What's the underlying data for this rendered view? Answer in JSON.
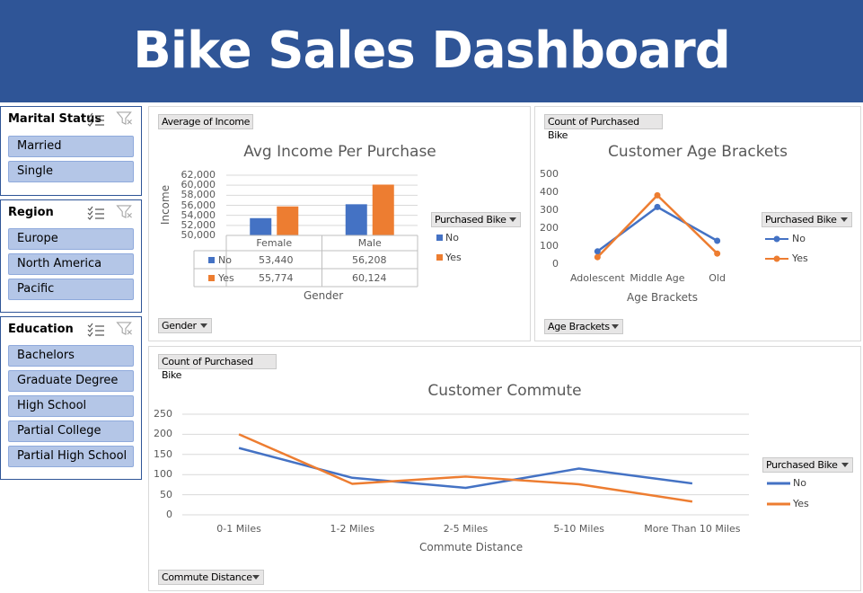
{
  "header": {
    "title": "Bike Sales Dashboard"
  },
  "colors": {
    "header_bg": "#2f5597",
    "series_no": "#4472c4",
    "series_yes": "#ed7d31",
    "slicer_item": "#b4c6e7"
  },
  "slicers": [
    {
      "title": "Marital Status",
      "items": [
        "Married",
        "Single"
      ],
      "icons": [
        "multi-select-icon",
        "clear-filter-icon"
      ]
    },
    {
      "title": "Region",
      "items": [
        "Europe",
        "North America",
        "Pacific"
      ],
      "icons": [
        "multi-select-icon",
        "clear-filter-icon"
      ]
    },
    {
      "title": "Education",
      "items": [
        "Bachelors",
        "Graduate Degree",
        "High School",
        "Partial College",
        "Partial High School"
      ],
      "icons": [
        "multi-select-icon",
        "clear-filter-icon"
      ]
    }
  ],
  "income_panel": {
    "value_button": "Average of Income",
    "axis_button": "Gender",
    "legend_button": "Purchased Bike",
    "table": {
      "rows": [
        {
          "label": "No",
          "values": [
            "53,440",
            "56,208"
          ]
        },
        {
          "label": "Yes",
          "values": [
            "55,774",
            "60,124"
          ]
        }
      ]
    }
  },
  "age_panel": {
    "value_button": "Count of Purchased Bike",
    "axis_button": "Age Brackets",
    "legend_button": "Purchased Bike"
  },
  "commute_panel": {
    "value_button": "Count of Purchased Bike",
    "axis_button": "Commute Distance",
    "legend_button": "Purchased Bike"
  },
  "chart_data": [
    {
      "type": "bar",
      "title": "Avg Income Per Purchase",
      "xlabel": "Gender",
      "ylabel": "Income",
      "categories": [
        "Female",
        "Male"
      ],
      "series": [
        {
          "name": "No",
          "values": [
            53440,
            56208
          ]
        },
        {
          "name": "Yes",
          "values": [
            55774,
            60124
          ]
        }
      ],
      "ylim": [
        50000,
        62000
      ],
      "yticks": [
        "50,000",
        "52,000",
        "54,000",
        "56,000",
        "58,000",
        "60,000",
        "62,000"
      ],
      "grid": true,
      "legend": "right"
    },
    {
      "type": "line",
      "title": "Customer Age Brackets",
      "xlabel": "Age Brackets",
      "ylabel": "",
      "categories": [
        "Adolescent",
        "Middle Age",
        "Old"
      ],
      "series": [
        {
          "name": "No",
          "values": [
            71,
            318,
            130
          ]
        },
        {
          "name": "Yes",
          "values": [
            39,
            383,
            59
          ]
        }
      ],
      "ylim": [
        0,
        500
      ],
      "yticks": [
        "0",
        "100",
        "200",
        "300",
        "400",
        "500"
      ],
      "grid": false,
      "legend": "right"
    },
    {
      "type": "line",
      "title": "Customer Commute",
      "xlabel": "Commute Distance",
      "ylabel": "",
      "categories": [
        "0-1 Miles",
        "1-2 Miles",
        "2-5 Miles",
        "5-10 Miles",
        "More Than 10 Miles"
      ],
      "series": [
        {
          "name": "No",
          "values": [
            166,
            92,
            67,
            115,
            78
          ]
        },
        {
          "name": "Yes",
          "values": [
            200,
            77,
            95,
            76,
            33
          ]
        }
      ],
      "ylim": [
        0,
        250
      ],
      "yticks": [
        "0",
        "50",
        "100",
        "150",
        "200",
        "250"
      ],
      "grid": true,
      "legend": "right"
    }
  ]
}
